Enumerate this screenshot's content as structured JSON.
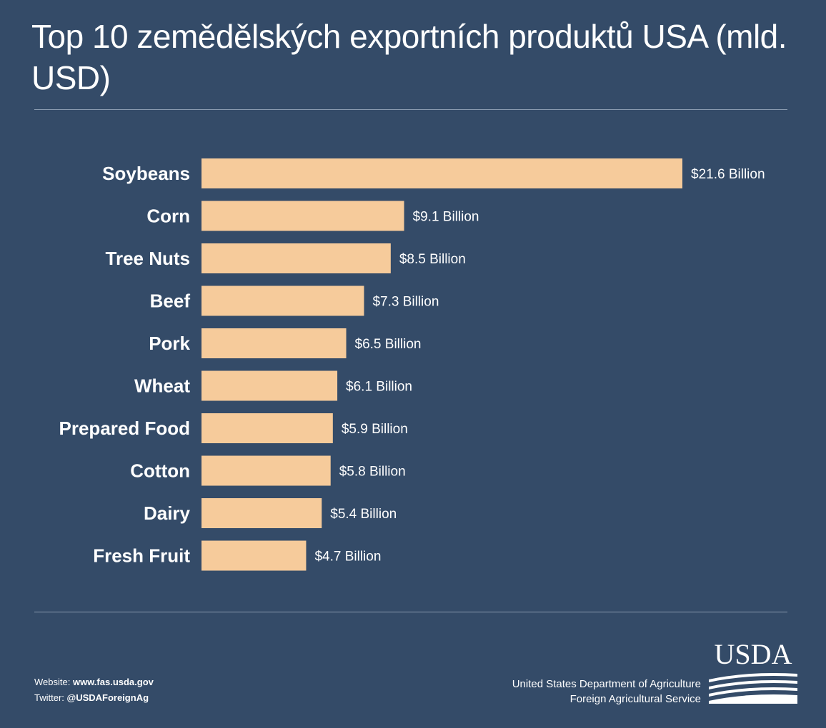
{
  "title": "Top 10 zemědělských exportních produktů USA (mld. USD)",
  "colors": {
    "background": "#344b68",
    "bar": "#f6cb9b",
    "rule": "#8a9bb0"
  },
  "chart_data": {
    "type": "bar",
    "orientation": "horizontal",
    "title": "Top 10 zemědělských exportních produktů USA (mld. USD)",
    "categories": [
      "Soybeans",
      "Corn",
      "Tree Nuts",
      "Beef",
      "Pork",
      "Wheat",
      "Prepared Food",
      "Cotton",
      "Dairy",
      "Fresh Fruit"
    ],
    "values": [
      21.6,
      9.1,
      8.5,
      7.3,
      6.5,
      6.1,
      5.9,
      5.8,
      5.4,
      4.7
    ],
    "value_labels": [
      "$21.6 Billion",
      "$9.1 Billion",
      "$8.5 Billion",
      "$7.3 Billion",
      "$6.5 Billion",
      "$6.1 Billion",
      "$5.9 Billion",
      "$5.8 Billion",
      "$5.4 Billion",
      "$4.7 Billion"
    ],
    "xlim": [
      0,
      21.6
    ],
    "grid": false,
    "legend": "none"
  },
  "footer": {
    "website_prefix": "Website: ",
    "website": "www.fas.usda.gov",
    "twitter_prefix": "Twitter: ",
    "twitter": "@USDAForeignAg",
    "agency_line1": "United States Department of Agriculture",
    "agency_line2": "Foreign Agricultural Service",
    "logo_text": "USDA"
  }
}
